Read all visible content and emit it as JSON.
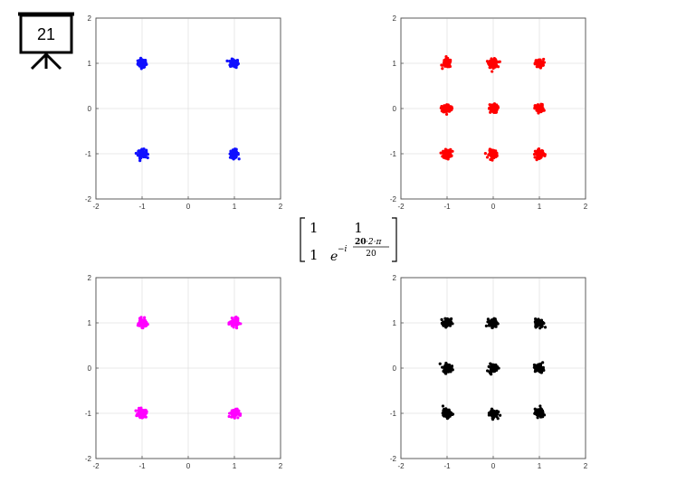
{
  "slide": {
    "badge_number": "21",
    "badge_icon": "presentation-board-icon"
  },
  "matrix": {
    "r1c1": "1",
    "r1c2": "1",
    "r2c1": "1",
    "base": "e",
    "exp_sign": "−i",
    "num_highlight": "20",
    "num_rest": "·2·π",
    "denominator": "20",
    "highlight_color": "#c00000"
  },
  "chart_data": [
    {
      "type": "scatter",
      "title": "",
      "xlim": [
        -2,
        2
      ],
      "ylim": [
        -2,
        2
      ],
      "x_ticks": [
        "-2",
        "-1",
        "0",
        "1",
        "2"
      ],
      "y_ticks": [
        "-2",
        "-1",
        "0",
        "1",
        "2"
      ],
      "grid": true,
      "color": "#1010ff",
      "clusters": [
        {
          "x": -1,
          "y": 1
        },
        {
          "x": 1,
          "y": 1
        },
        {
          "x": -1,
          "y": -1
        },
        {
          "x": 1,
          "y": -1
        }
      ]
    },
    {
      "type": "scatter",
      "title": "",
      "xlim": [
        -2,
        2
      ],
      "ylim": [
        -2,
        2
      ],
      "x_ticks": [
        "-2",
        "-1",
        "0",
        "1",
        "2"
      ],
      "y_ticks": [
        "-2",
        "-1",
        "0",
        "1",
        "2"
      ],
      "grid": true,
      "color": "#ff0000",
      "clusters": [
        {
          "x": -1,
          "y": 1
        },
        {
          "x": 0,
          "y": 1
        },
        {
          "x": 1,
          "y": 1
        },
        {
          "x": -1,
          "y": 0
        },
        {
          "x": 0,
          "y": 0
        },
        {
          "x": 1,
          "y": 0
        },
        {
          "x": -1,
          "y": -1
        },
        {
          "x": 0,
          "y": -1
        },
        {
          "x": 1,
          "y": -1
        }
      ]
    },
    {
      "type": "scatter",
      "title": "",
      "xlim": [
        -2,
        2
      ],
      "ylim": [
        -2,
        2
      ],
      "x_ticks": [
        "-2",
        "-1",
        "0",
        "1",
        "2"
      ],
      "y_ticks": [
        "-2",
        "-1",
        "0",
        "1",
        "2"
      ],
      "grid": true,
      "color": "#ff00ff",
      "clusters": [
        {
          "x": -1,
          "y": 1
        },
        {
          "x": 1,
          "y": 1
        },
        {
          "x": -1,
          "y": -1
        },
        {
          "x": 1,
          "y": -1
        }
      ]
    },
    {
      "type": "scatter",
      "title": "",
      "xlim": [
        -2,
        2
      ],
      "ylim": [
        -2,
        2
      ],
      "x_ticks": [
        "-2",
        "-1",
        "0",
        "1",
        "2"
      ],
      "y_ticks": [
        "-2",
        "-1",
        "0",
        "1",
        "2"
      ],
      "grid": true,
      "color": "#000000",
      "clusters": [
        {
          "x": -1,
          "y": 1
        },
        {
          "x": 0,
          "y": 1
        },
        {
          "x": 1,
          "y": 1
        },
        {
          "x": -1,
          "y": 0
        },
        {
          "x": 0,
          "y": 0
        },
        {
          "x": 1,
          "y": 0
        },
        {
          "x": -1,
          "y": -1
        },
        {
          "x": 0,
          "y": -1
        },
        {
          "x": 1,
          "y": -1
        }
      ]
    }
  ]
}
